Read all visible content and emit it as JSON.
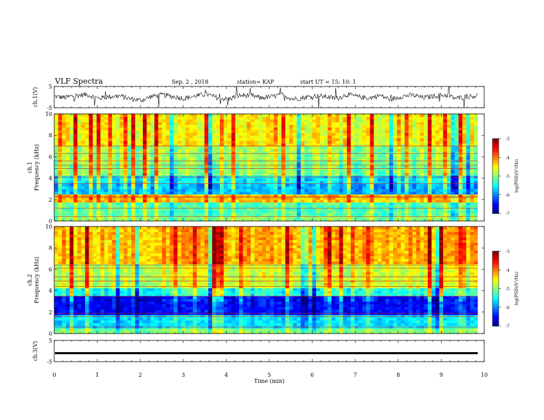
{
  "header": {
    "title": "VLF Spectra",
    "date": "Sep. 2 , 2018",
    "station": "station= KAP",
    "start": "start UT = 15: 10: 1"
  },
  "chart_data": [
    {
      "type": "line",
      "panel": "ch1-waveform",
      "ylabel": "ch.1(V)",
      "ylim": [
        -5,
        5
      ],
      "yticks": [
        "5",
        "-5"
      ],
      "xlim": [
        0,
        10
      ],
      "series": [
        {
          "values": [
            0.3,
            -0.2,
            0.8,
            1.2,
            -0.5,
            0.1,
            0.6,
            -0.8,
            -1.5,
            0.4,
            1.0,
            0.2,
            -0.6,
            0.5,
            1.4,
            -0.3,
            -1.0,
            0.7,
            0.9,
            -0.4,
            0.2,
            1.1,
            -0.9,
            -0.2,
            0.6,
            0.3,
            -0.7,
            1.3,
            0.1,
            -0.5,
            0.8,
            -1.2,
            0.4,
            0.9,
            -0.3,
            0.5,
            1.0,
            -0.6,
            0.2,
            0.7
          ]
        }
      ]
    },
    {
      "type": "heatmap",
      "panel": "ch1-spectrogram",
      "ylabel": "ch.1 Frequency (kHz)",
      "ylim": [
        0,
        10
      ],
      "yticks": [
        "0",
        "2",
        "4",
        "6",
        "8",
        "10"
      ],
      "xlim": [
        0,
        10
      ],
      "colorbar": {
        "label": "log(PSD)(V²/Hz)",
        "range": [
          -7,
          -3
        ],
        "ticks": [
          "-3",
          "-4",
          "-5",
          "-6",
          "-7"
        ]
      },
      "bands": [
        {
          "from": 0.0,
          "to": 0.5,
          "level": -5.0
        },
        {
          "from": 0.5,
          "to": 1.8,
          "level": -5.2
        },
        {
          "from": 1.8,
          "to": 2.4,
          "level": -4.3
        },
        {
          "from": 2.4,
          "to": 3.4,
          "level": -5.8
        },
        {
          "from": 3.4,
          "to": 4.3,
          "level": -5.6
        },
        {
          "from": 4.3,
          "to": 5.4,
          "level": -5.0
        },
        {
          "from": 5.4,
          "to": 7.0,
          "level": -4.9
        },
        {
          "from": 7.0,
          "to": 10.0,
          "level": -4.5
        }
      ]
    },
    {
      "type": "heatmap",
      "panel": "ch2-spectrogram",
      "ylabel": "ch.2 Frequency (kHz)",
      "ylim": [
        0,
        10
      ],
      "yticks": [
        "0",
        "2",
        "4",
        "6",
        "8",
        "10"
      ],
      "xlim": [
        0,
        10
      ],
      "colorbar": {
        "label": "log(PSD)(V²/Hz)",
        "range": [
          -7,
          -3
        ],
        "ticks": [
          "-3",
          "-4",
          "-5",
          "-6",
          "-7"
        ]
      },
      "bands": [
        {
          "from": 0.0,
          "to": 0.6,
          "level": -5.0
        },
        {
          "from": 0.6,
          "to": 1.8,
          "level": -5.6
        },
        {
          "from": 1.8,
          "to": 3.4,
          "level": -6.5
        },
        {
          "from": 3.4,
          "to": 4.2,
          "level": -5.4
        },
        {
          "from": 4.2,
          "to": 6.5,
          "level": -4.7
        },
        {
          "from": 6.5,
          "to": 10.0,
          "level": -4.2
        }
      ]
    },
    {
      "type": "line",
      "panel": "ch3-waveform",
      "ylabel": "ch.3(V)",
      "ylim": [
        -5,
        5
      ],
      "yticks": [
        "5",
        "-5"
      ],
      "xlim": [
        0,
        10
      ],
      "series": [
        {
          "values": [
            -1.0,
            -1.0,
            -1.0,
            -1.0,
            -1.0,
            -1.0,
            -1.0,
            -1.0,
            -1.0,
            -1.0
          ]
        }
      ]
    }
  ],
  "xaxis": {
    "xlabel": "Time (min)",
    "ticks": [
      "0",
      "1",
      "2",
      "3",
      "4",
      "5",
      "6",
      "7",
      "8",
      "9",
      "10"
    ]
  }
}
